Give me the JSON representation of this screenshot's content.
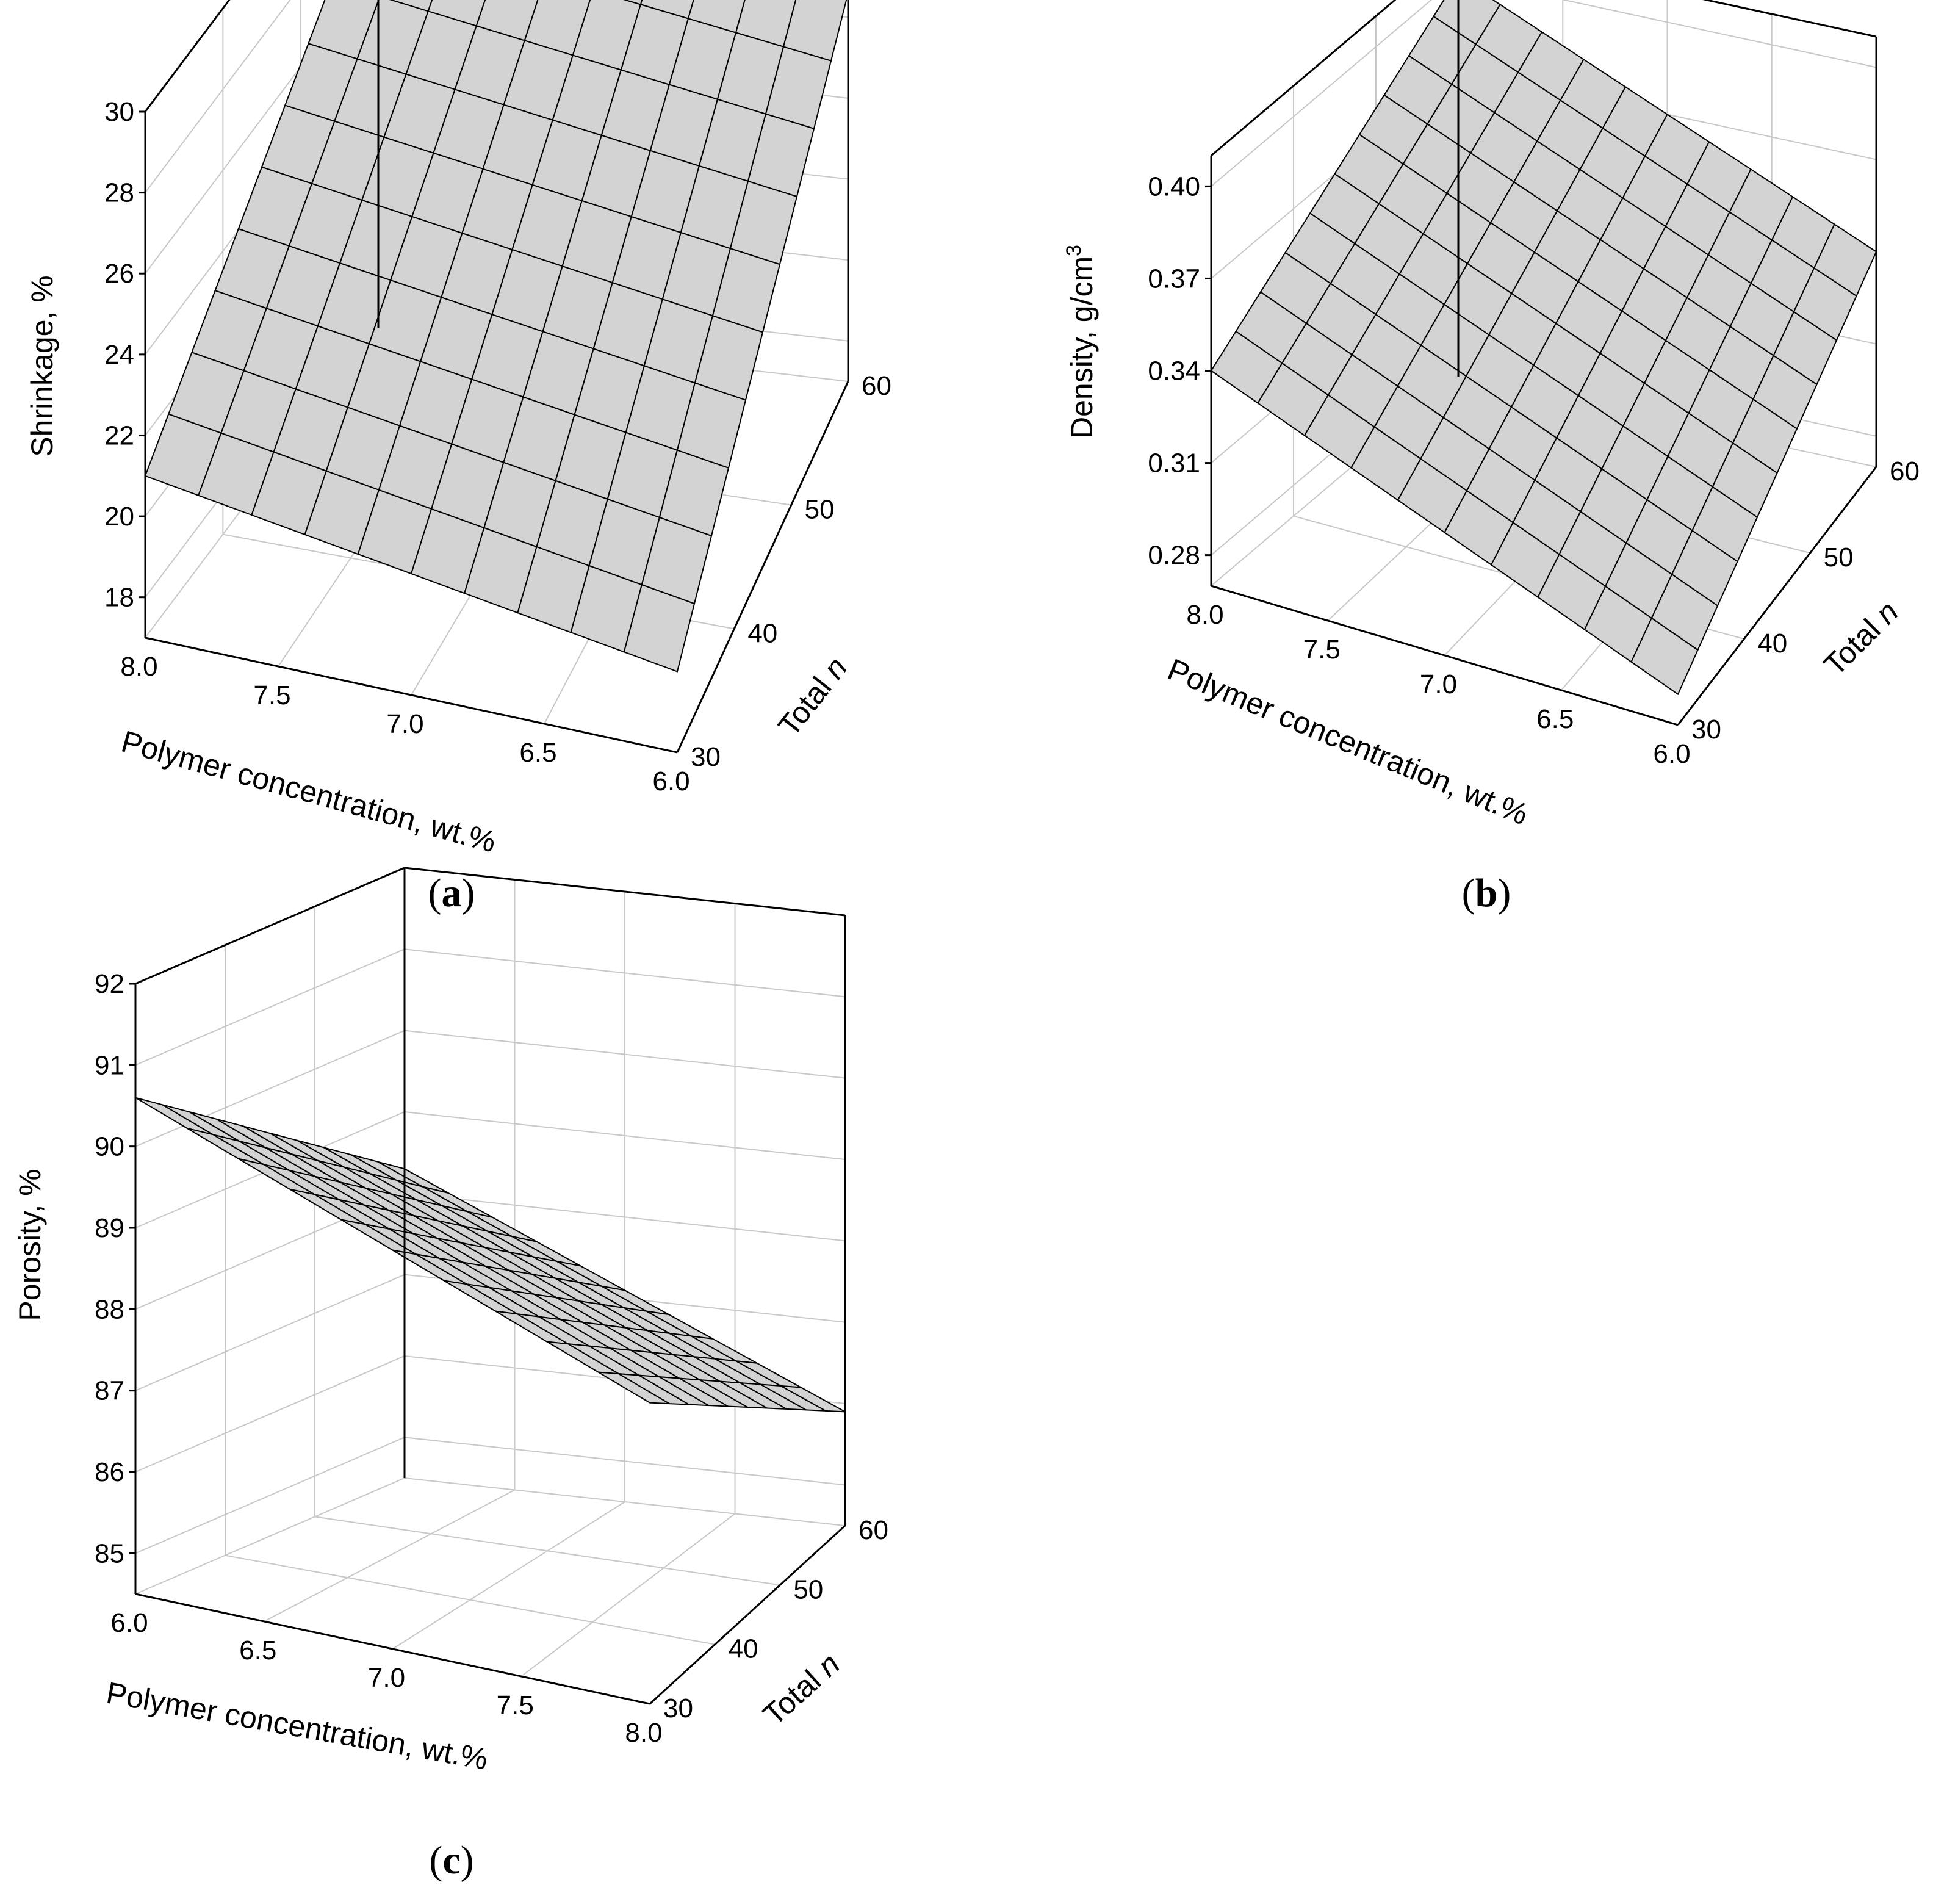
{
  "chart_data": [
    {
      "type": "surface",
      "panel": "a",
      "caption": {
        "open": "(",
        "letter": "a",
        "close": ")"
      },
      "xlabel": "Polymer concentration, wt.%",
      "ylabel": {
        "main": "Total ",
        "italic": "n"
      },
      "zlabel": "Shrinkage, %",
      "x_ticks": [
        "8.0",
        "7.5",
        "7.0",
        "6.5",
        "6.0"
      ],
      "y_ticks": [
        "30",
        "40",
        "50",
        "60"
      ],
      "z_ticks": [
        "18",
        "20",
        "22",
        "24",
        "26",
        "28",
        "30"
      ],
      "xlim": [
        6.0,
        8.0
      ],
      "ylim": [
        30,
        60
      ],
      "zlim": [
        17,
        30
      ],
      "grid": true,
      "surface_color": "#d3d3d3",
      "mesh": [
        10,
        10
      ],
      "corners": {
        "x8_n30": 21.0,
        "x6_n30": 19.0,
        "x8_n60": 28.6,
        "x6_n60": 26.6
      }
    },
    {
      "type": "surface",
      "panel": "b",
      "caption": {
        "open": "(",
        "letter": "b",
        "close": ")"
      },
      "xlabel": "Polymer concentration, wt.%",
      "ylabel": {
        "main": "Total ",
        "italic": "n"
      },
      "zlabel": {
        "main": "Density, g/cm",
        "sup": "3"
      },
      "x_ticks": [
        "8.0",
        "7.5",
        "7.0",
        "6.5",
        "6.0"
      ],
      "y_ticks": [
        "30",
        "40",
        "50",
        "60"
      ],
      "z_ticks": [
        "0.28",
        "0.31",
        "0.34",
        "0.37",
        "0.40"
      ],
      "xlim": [
        6.0,
        8.0
      ],
      "ylim": [
        30,
        60
      ],
      "zlim": [
        0.27,
        0.41
      ],
      "grid": true,
      "surface_color": "#d3d3d3",
      "mesh": [
        10,
        10
      ],
      "corners": {
        "x8_n30": 0.34,
        "x6_n30": 0.28,
        "x8_n60": 0.4,
        "x6_n60": 0.34
      }
    },
    {
      "type": "surface",
      "panel": "c",
      "caption": {
        "open": "(",
        "letter": "c",
        "close": ")"
      },
      "xlabel": "Polymer concentration, wt.%",
      "ylabel": {
        "main": "Total ",
        "italic": "n"
      },
      "zlabel": "Porosity, %",
      "x_ticks": [
        "6.0",
        "6.5",
        "7.0",
        "7.5",
        "8.0"
      ],
      "y_ticks": [
        "30",
        "40",
        "50",
        "60"
      ],
      "z_ticks": [
        "85",
        "86",
        "87",
        "88",
        "89",
        "90",
        "91",
        "92"
      ],
      "xlim": [
        6.0,
        8.0
      ],
      "ylim": [
        30,
        60
      ],
      "zlim": [
        84.5,
        92
      ],
      "grid": true,
      "surface_color": "#d3d3d3",
      "mesh": [
        10,
        10
      ],
      "corners": {
        "x6_n60": 88.3,
        "x8_n60": 85.9,
        "x6_n30": 90.6,
        "x8_n30": 88.2
      }
    }
  ]
}
